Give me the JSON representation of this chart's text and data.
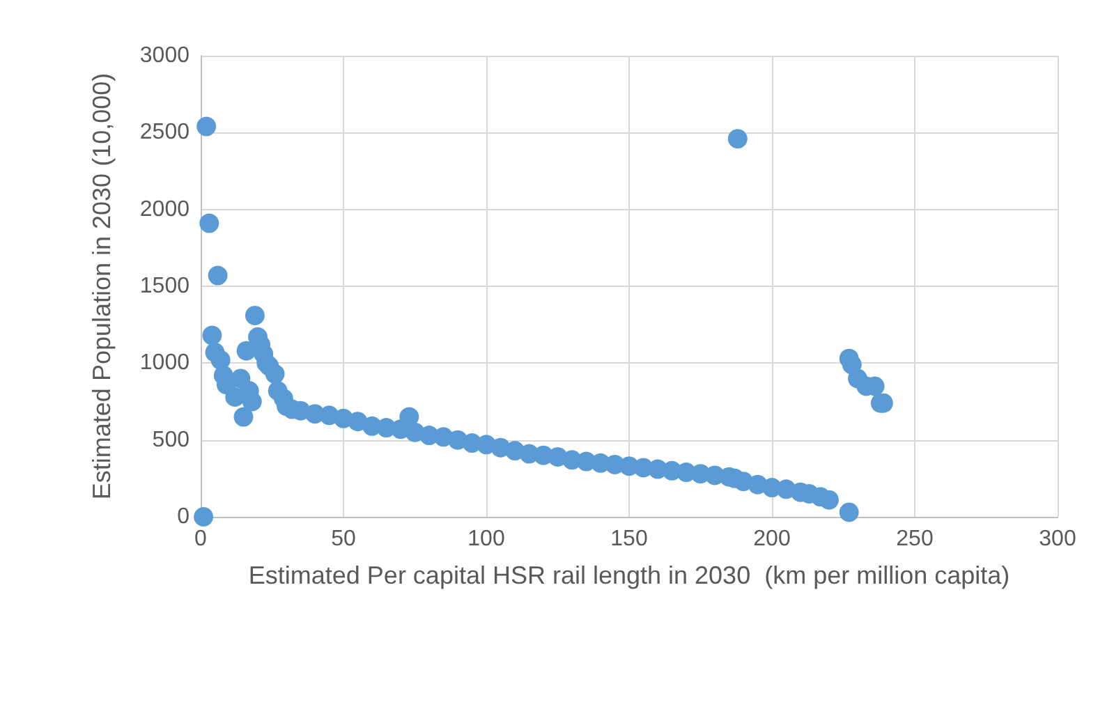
{
  "chart_data": {
    "type": "scatter",
    "xlabel": "Estimated Per capital HSR rail length in 2030  (km per million capita)",
    "ylabel": "Estimated Population in 2030 (10,000)",
    "xlim": [
      0,
      300
    ],
    "xticks": [
      0,
      50,
      100,
      150,
      200,
      250,
      300
    ],
    "ylim": [
      0,
      3000
    ],
    "yticks": [
      0,
      500,
      1000,
      1500,
      2000,
      2500,
      3000
    ],
    "grid": true,
    "legend": false,
    "marker": "circle",
    "series": [
      {
        "color": "#5b9bd5",
        "x": [
          1,
          2,
          3,
          6,
          4,
          5,
          7,
          8,
          9,
          12,
          14,
          15,
          16,
          17,
          18,
          19,
          20,
          21,
          22,
          23,
          24,
          26,
          27,
          29,
          30,
          32,
          35,
          40,
          45,
          50,
          55,
          60,
          65,
          70,
          73,
          75,
          80,
          85,
          90,
          95,
          100,
          105,
          110,
          115,
          120,
          125,
          130,
          135,
          140,
          145,
          150,
          155,
          160,
          165,
          170,
          175,
          180,
          185,
          187,
          188,
          190,
          195,
          200,
          205,
          210,
          213,
          217,
          220,
          227,
          227,
          228,
          230,
          233,
          236,
          238,
          239
        ],
        "values": [
          0,
          2540,
          1910,
          1570,
          1180,
          1070,
          1020,
          920,
          860,
          780,
          900,
          650,
          1080,
          820,
          750,
          1310,
          1170,
          1120,
          1060,
          1000,
          980,
          930,
          820,
          770,
          720,
          700,
          690,
          670,
          660,
          640,
          620,
          590,
          580,
          570,
          650,
          550,
          530,
          520,
          500,
          480,
          470,
          450,
          430,
          410,
          400,
          390,
          370,
          360,
          350,
          340,
          330,
          320,
          310,
          300,
          290,
          280,
          270,
          260,
          250,
          2460,
          230,
          210,
          190,
          180,
          160,
          150,
          130,
          110,
          30,
          1030,
          990,
          900,
          850,
          850,
          740,
          740
        ]
      }
    ]
  }
}
